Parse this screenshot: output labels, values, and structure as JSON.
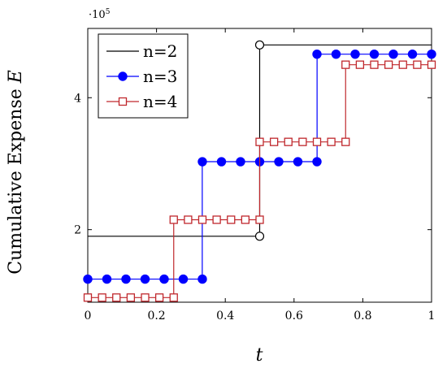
{
  "chart_data": {
    "type": "line",
    "step": true,
    "xlabel": "t",
    "ylabel_text": "Cumulative Expense ",
    "ylabel_var": "E",
    "y_multiplier": "·10",
    "y_multiplier_exp": "5",
    "xlim": [
      0,
      1
    ],
    "ylim": [
      90000,
      505000
    ],
    "xticks": [
      0,
      0.2,
      0.4,
      0.6,
      0.8,
      1
    ],
    "xtick_labels": [
      "0",
      "0.2",
      "0.4",
      "0.6",
      "0.8",
      "1"
    ],
    "yticks": [
      200000,
      400000
    ],
    "ytick_labels": [
      "2",
      "4"
    ],
    "legend_position": "top-left",
    "series": [
      {
        "name": "n=2",
        "color": "#000000",
        "marker": "open-circle",
        "segments": [
          {
            "x": [
              0,
              0.5
            ],
            "y": 190000
          },
          {
            "x": [
              0.5,
              1
            ],
            "y": 480000
          }
        ],
        "markers": [
          {
            "x": 0.5,
            "y": 190000
          },
          {
            "x": 0.5,
            "y": 480000
          }
        ]
      },
      {
        "name": "n=3",
        "color": "#0000ff",
        "marker": "filled-circle",
        "segments": [
          {
            "x": [
              0,
              0.333
            ],
            "y": 125000
          },
          {
            "x": [
              0.333,
              0.667
            ],
            "y": 303000
          },
          {
            "x": [
              0.667,
              1
            ],
            "y": 466000
          }
        ],
        "markers": [
          {
            "x": 0,
            "y": 125000
          },
          {
            "x": 0.0556,
            "y": 125000
          },
          {
            "x": 0.1111,
            "y": 125000
          },
          {
            "x": 0.1667,
            "y": 125000
          },
          {
            "x": 0.2222,
            "y": 125000
          },
          {
            "x": 0.2778,
            "y": 125000
          },
          {
            "x": 0.3333,
            "y": 125000
          },
          {
            "x": 0.3333,
            "y": 303000
          },
          {
            "x": 0.3889,
            "y": 303000
          },
          {
            "x": 0.4444,
            "y": 303000
          },
          {
            "x": 0.5,
            "y": 303000
          },
          {
            "x": 0.5556,
            "y": 303000
          },
          {
            "x": 0.6111,
            "y": 303000
          },
          {
            "x": 0.6667,
            "y": 303000
          },
          {
            "x": 0.6667,
            "y": 466000
          },
          {
            "x": 0.7222,
            "y": 466000
          },
          {
            "x": 0.7778,
            "y": 466000
          },
          {
            "x": 0.8333,
            "y": 466000
          },
          {
            "x": 0.8889,
            "y": 466000
          },
          {
            "x": 0.9444,
            "y": 466000
          },
          {
            "x": 1,
            "y": 466000
          }
        ]
      },
      {
        "name": "n=4",
        "color": "#c0282d",
        "marker": "open-square",
        "segments": [
          {
            "x": [
              0,
              0.25
            ],
            "y": 97000
          },
          {
            "x": [
              0.25,
              0.5
            ],
            "y": 215000
          },
          {
            "x": [
              0.5,
              0.75
            ],
            "y": 333000
          },
          {
            "x": [
              0.75,
              1
            ],
            "y": 450000
          }
        ],
        "markers": [
          {
            "x": 0,
            "y": 97000
          },
          {
            "x": 0.0417,
            "y": 97000
          },
          {
            "x": 0.0833,
            "y": 97000
          },
          {
            "x": 0.125,
            "y": 97000
          },
          {
            "x": 0.1667,
            "y": 97000
          },
          {
            "x": 0.2083,
            "y": 97000
          },
          {
            "x": 0.25,
            "y": 97000
          },
          {
            "x": 0.25,
            "y": 215000
          },
          {
            "x": 0.2917,
            "y": 215000
          },
          {
            "x": 0.3333,
            "y": 215000
          },
          {
            "x": 0.375,
            "y": 215000
          },
          {
            "x": 0.4167,
            "y": 215000
          },
          {
            "x": 0.4583,
            "y": 215000
          },
          {
            "x": 0.5,
            "y": 215000
          },
          {
            "x": 0.5,
            "y": 333000
          },
          {
            "x": 0.5417,
            "y": 333000
          },
          {
            "x": 0.5833,
            "y": 333000
          },
          {
            "x": 0.625,
            "y": 333000
          },
          {
            "x": 0.6667,
            "y": 333000
          },
          {
            "x": 0.7083,
            "y": 333000
          },
          {
            "x": 0.75,
            "y": 333000
          },
          {
            "x": 0.75,
            "y": 450000
          },
          {
            "x": 0.7917,
            "y": 450000
          },
          {
            "x": 0.8333,
            "y": 450000
          },
          {
            "x": 0.875,
            "y": 450000
          },
          {
            "x": 0.9167,
            "y": 450000
          },
          {
            "x": 0.9583,
            "y": 450000
          },
          {
            "x": 1,
            "y": 450000
          }
        ]
      }
    ]
  }
}
